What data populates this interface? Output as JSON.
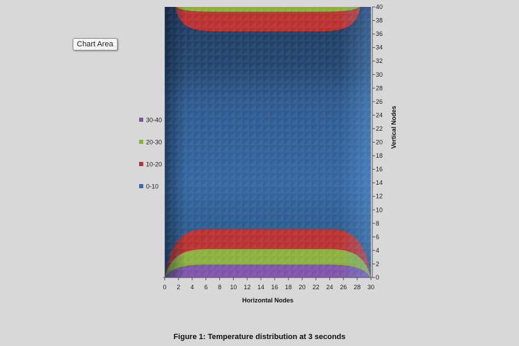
{
  "tooltip": "Chart Area",
  "caption": "Figure 1: Temperature distribution at 3 seconds",
  "chart_data": {
    "type": "surface-contour",
    "xlabel": "Horizontal Nodes",
    "ylabel": "Vertical Nodes",
    "xlim": [
      0,
      30
    ],
    "ylim": [
      0,
      40
    ],
    "xticks": [
      "0",
      "2",
      "4",
      "6",
      "8",
      "10",
      "12",
      "14",
      "16",
      "18",
      "20",
      "22",
      "24",
      "26",
      "28",
      "30"
    ],
    "yticks": [
      "0",
      "2",
      "4",
      "6",
      "8",
      "10",
      "12",
      "14",
      "16",
      "18",
      "20",
      "22",
      "24",
      "26",
      "28",
      "30",
      "32",
      "34",
      "36",
      "38",
      "40"
    ],
    "bands": [
      {
        "name": "30-40",
        "color": "#7d55a8"
      },
      {
        "name": "20-30",
        "color": "#8cb040"
      },
      {
        "name": "10-20",
        "color": "#b83232"
      },
      {
        "name": "0-10",
        "color": "#3a6aa6"
      }
    ],
    "contours_bottom": [
      {
        "band": "10-20",
        "top": 7.2
      },
      {
        "band": "20-30",
        "top": 4.2
      },
      {
        "band": "30-40",
        "top": 1.9
      }
    ],
    "contours_top": [
      {
        "band": "10-20",
        "bottom": 36.4
      },
      {
        "band": "20-30",
        "bottom": 39.3
      }
    ],
    "legend_position": "left"
  }
}
